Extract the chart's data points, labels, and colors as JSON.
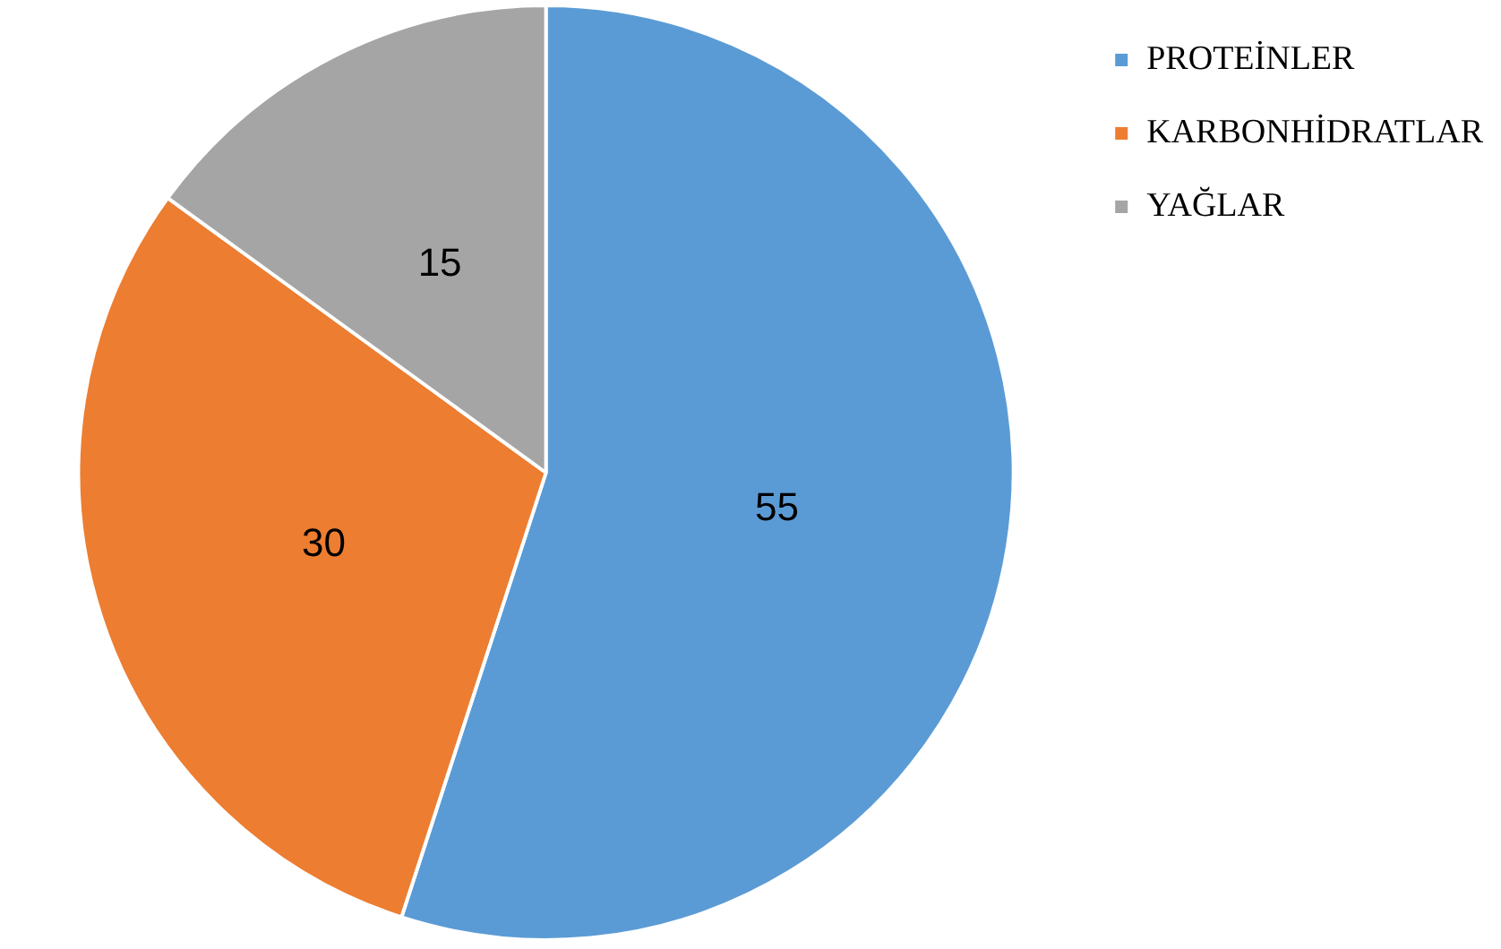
{
  "chart_data": {
    "type": "pie",
    "categories": [
      "PROTEİNLER",
      "KARBONHİDRATLAR",
      "YAĞLAR"
    ],
    "values": [
      55,
      30,
      15
    ],
    "colors": [
      "#5b9bd5",
      "#ed7d31",
      "#a5a5a5"
    ],
    "data_labels": true,
    "legend": "top right"
  }
}
